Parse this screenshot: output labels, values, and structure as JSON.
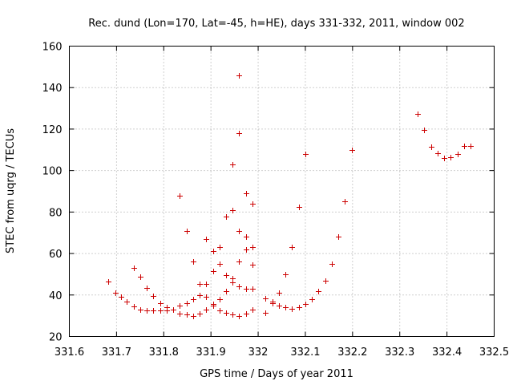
{
  "chart_data": {
    "type": "scatter",
    "title": "Rec. dund (Lon=170, Lat=-45, h=HE), days 331-332, 2011, window 002",
    "xlabel": "GPS time / Days of year 2011",
    "ylabel": "STEC from uqrg / TECUs",
    "xlim": [
      331.6,
      332.5
    ],
    "ylim": [
      20,
      160
    ],
    "xticks": [
      "331.6",
      "331.7",
      "331.8",
      "331.9",
      "332",
      "332.1",
      "332.2",
      "332.3",
      "332.4",
      "332.5"
    ],
    "yticks": [
      "20",
      "40",
      "60",
      "80",
      "100",
      "120",
      "140",
      "160"
    ],
    "grid": true,
    "marker": "+",
    "color": "#cc0000",
    "points": [
      [
        331.682,
        46.5
      ],
      [
        331.697,
        41
      ],
      [
        331.709,
        39
      ],
      [
        331.722,
        37
      ],
      [
        331.736,
        34.5
      ],
      [
        331.75,
        33
      ],
      [
        331.764,
        32.5
      ],
      [
        331.778,
        32.5
      ],
      [
        331.792,
        32.5
      ],
      [
        331.806,
        32.5
      ],
      [
        331.82,
        33
      ],
      [
        331.834,
        31
      ],
      [
        331.848,
        30.5
      ],
      [
        331.862,
        30
      ],
      [
        331.876,
        31
      ],
      [
        331.89,
        33
      ],
      [
        331.904,
        35
      ],
      [
        331.918,
        32.5
      ],
      [
        331.932,
        31.5
      ],
      [
        331.946,
        30.5
      ],
      [
        331.96,
        30
      ],
      [
        331.974,
        31
      ],
      [
        331.988,
        33
      ],
      [
        332.016,
        31.5
      ],
      [
        331.736,
        53
      ],
      [
        331.75,
        49
      ],
      [
        331.764,
        43.5
      ],
      [
        331.778,
        39.5
      ],
      [
        331.792,
        36
      ],
      [
        331.806,
        34
      ],
      [
        331.82,
        33
      ],
      [
        331.834,
        35
      ],
      [
        331.848,
        36
      ],
      [
        331.862,
        38
      ],
      [
        331.876,
        40
      ],
      [
        331.89,
        39
      ],
      [
        331.904,
        35.5
      ],
      [
        331.918,
        38
      ],
      [
        331.932,
        42
      ],
      [
        331.946,
        46
      ],
      [
        331.96,
        44
      ],
      [
        331.974,
        43
      ],
      [
        331.988,
        43
      ],
      [
        332.016,
        38.5
      ],
      [
        332.03,
        36
      ],
      [
        332.044,
        35
      ],
      [
        332.058,
        34
      ],
      [
        332.072,
        33.5
      ],
      [
        332.086,
        34
      ],
      [
        332.1,
        35.5
      ],
      [
        332.114,
        38
      ],
      [
        332.128,
        42
      ],
      [
        332.142,
        47
      ],
      [
        332.156,
        55
      ],
      [
        332.17,
        68
      ],
      [
        332.184,
        85
      ],
      [
        332.198,
        110
      ],
      [
        331.834,
        88
      ],
      [
        331.848,
        71
      ],
      [
        331.862,
        56
      ],
      [
        331.876,
        45.5
      ],
      [
        331.89,
        45.5
      ],
      [
        331.904,
        51.5
      ],
      [
        331.918,
        55
      ],
      [
        331.932,
        49.5
      ],
      [
        331.946,
        48
      ],
      [
        331.89,
        67
      ],
      [
        331.904,
        61
      ],
      [
        331.918,
        63
      ],
      [
        331.932,
        78
      ],
      [
        331.946,
        81
      ],
      [
        331.946,
        103
      ],
      [
        331.96,
        146
      ],
      [
        331.96,
        118
      ],
      [
        331.96,
        71
      ],
      [
        331.96,
        56
      ],
      [
        331.974,
        89
      ],
      [
        331.974,
        68
      ],
      [
        331.974,
        62
      ],
      [
        331.988,
        84
      ],
      [
        331.988,
        63
      ],
      [
        331.988,
        54.5
      ],
      [
        332.03,
        37
      ],
      [
        332.044,
        41
      ],
      [
        332.058,
        50
      ],
      [
        332.072,
        63
      ],
      [
        332.086,
        82.5
      ],
      [
        332.1,
        108
      ],
      [
        332.338,
        127.5
      ],
      [
        332.352,
        119.5
      ],
      [
        332.366,
        111.5
      ],
      [
        332.38,
        108.5
      ],
      [
        332.394,
        106
      ],
      [
        332.408,
        106.5
      ],
      [
        332.422,
        108
      ],
      [
        332.436,
        112
      ],
      [
        332.45,
        112
      ]
    ]
  }
}
